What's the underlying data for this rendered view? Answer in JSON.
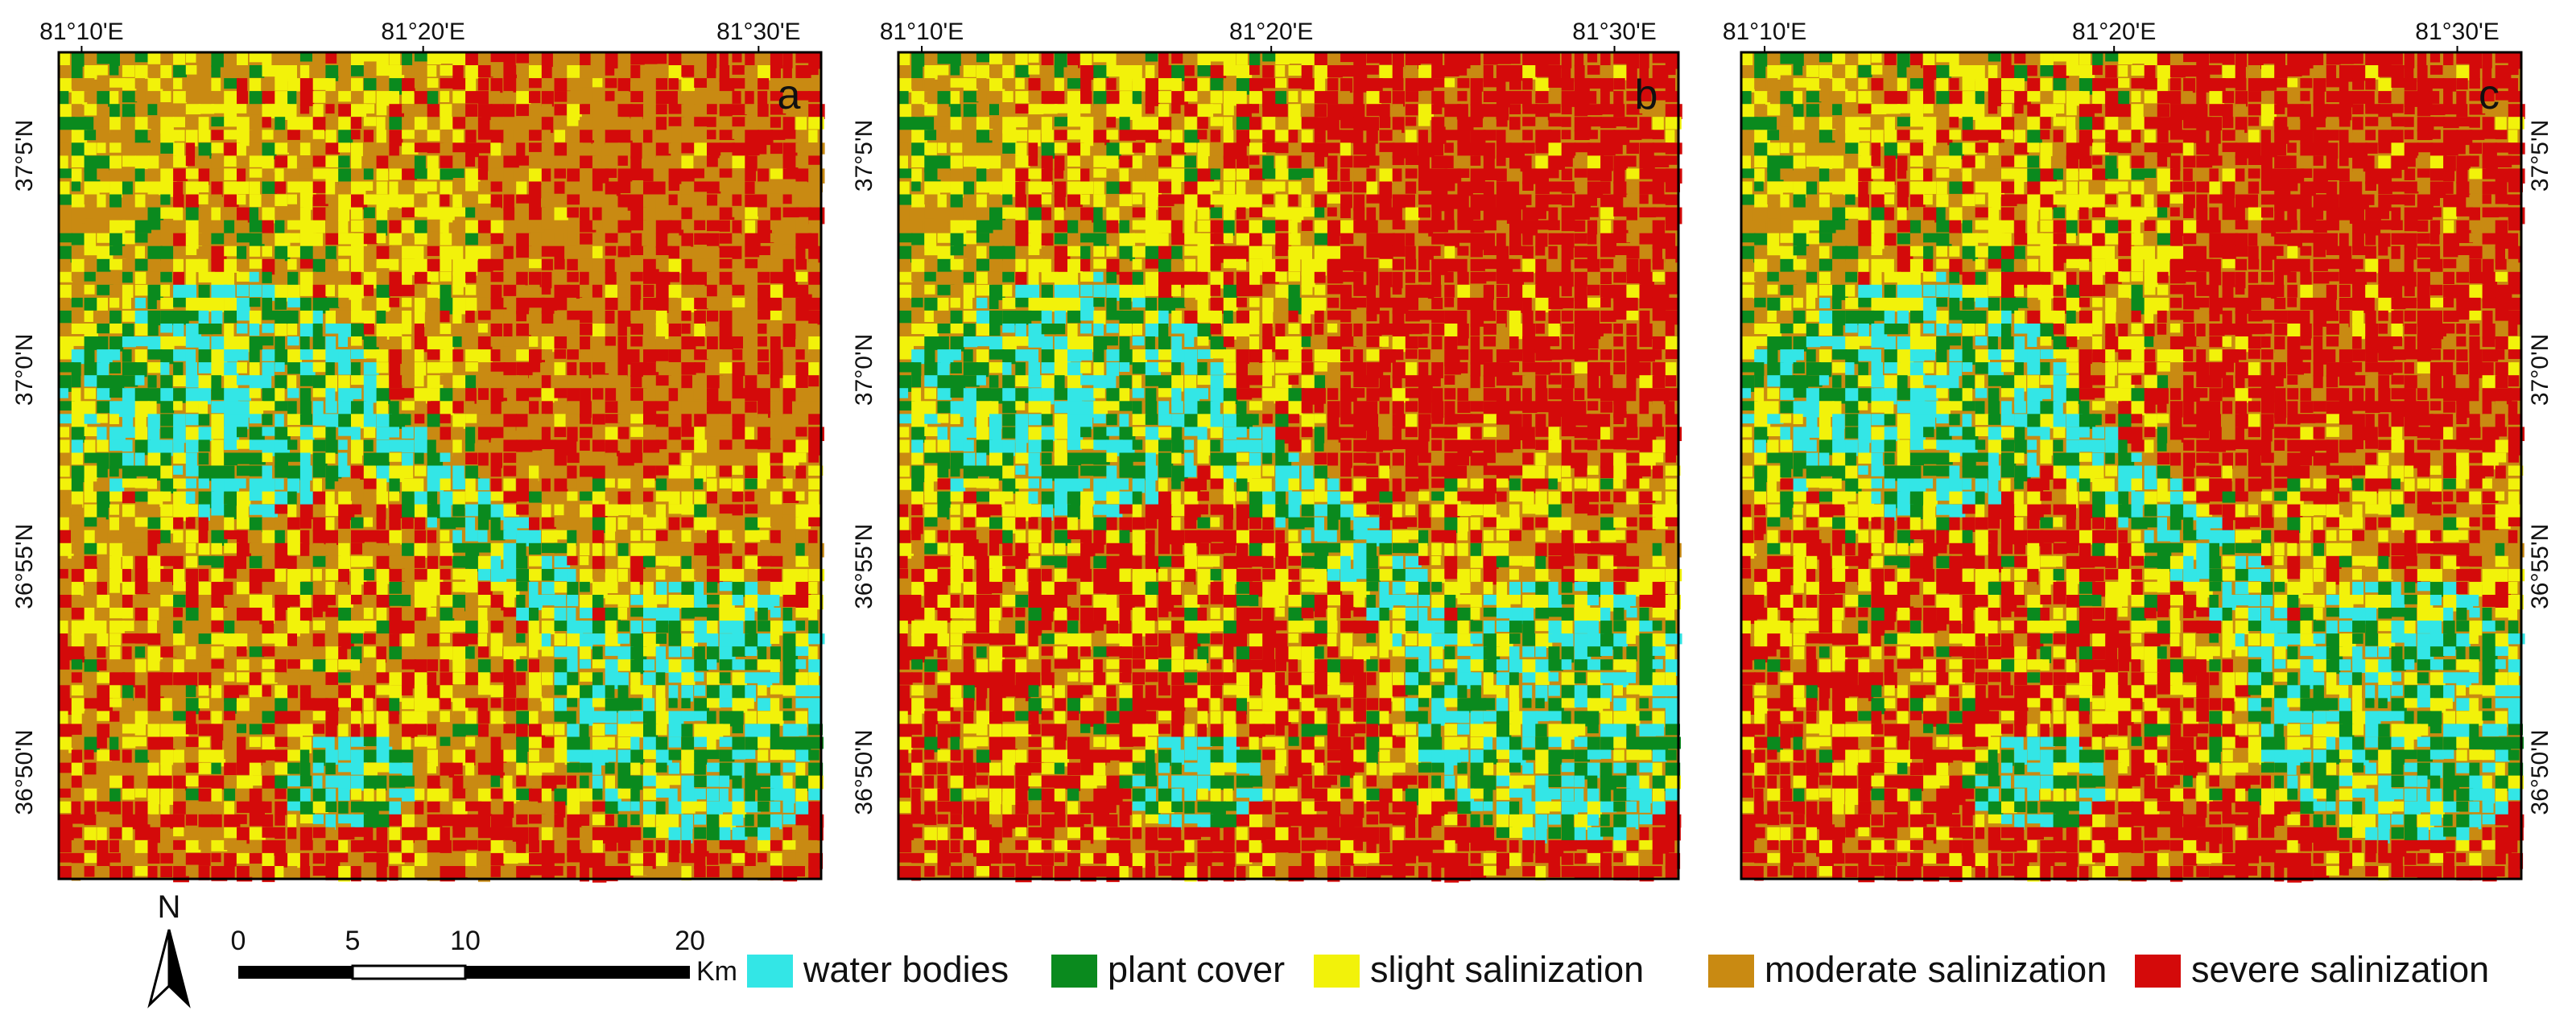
{
  "panels": [
    {
      "label": "a"
    },
    {
      "label": "b"
    },
    {
      "label": "c"
    }
  ],
  "lon_ticks": [
    "81°10'E",
    "81°20'E",
    "81°30'E"
  ],
  "lat_ticks": [
    "37°5'N",
    "37°0'N",
    "36°55'N",
    "36°50'N"
  ],
  "north": "N",
  "scale_bar": {
    "ticks": [
      "0",
      "5",
      "10",
      "20"
    ],
    "unit": "Km"
  },
  "legend": {
    "items": [
      {
        "name": "water bodies",
        "color": "#33e6e6"
      },
      {
        "name": "plant cover",
        "color": "#0a8a1e"
      },
      {
        "name": "slight salinization",
        "color": "#f2f20a"
      },
      {
        "name": "moderate salinization",
        "color": "#c98a12"
      },
      {
        "name": "severe salinization",
        "color": "#d40a0a"
      }
    ]
  }
}
